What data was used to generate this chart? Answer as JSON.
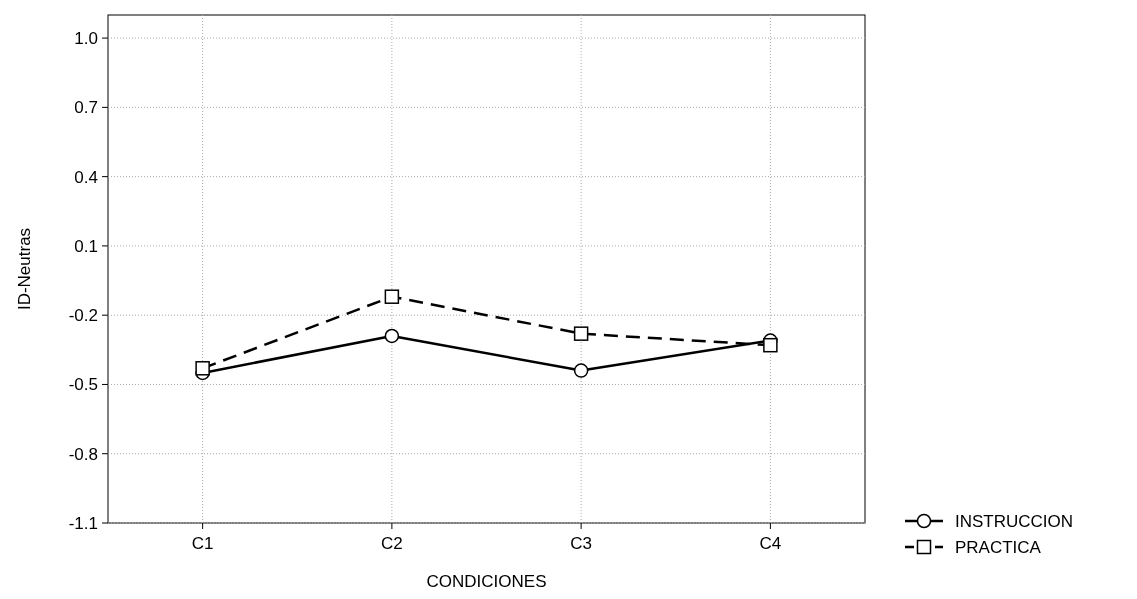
{
  "chart_data": {
    "type": "line",
    "xlabel": "CONDICIONES",
    "ylabel": "ID-Neutras",
    "categories": [
      "C1",
      "C2",
      "C3",
      "C4"
    ],
    "series": [
      {
        "name": "INSTRUCCION",
        "color": "#000000",
        "values": [
          -0.45,
          -0.29,
          -0.44,
          -0.31
        ],
        "marker": "circle",
        "line_style": "solid"
      },
      {
        "name": "PRACTICA",
        "color": "#000000",
        "values": [
          -0.43,
          -0.12,
          -0.28,
          -0.33
        ],
        "marker": "square",
        "line_style": "dashed"
      }
    ],
    "ylim": [
      -1.1,
      1.1
    ],
    "yticks": [
      -1.1,
      -0.8,
      -0.5,
      -0.2,
      0.1,
      0.4,
      0.7,
      {
        "value": 1,
        "label": "1.0"
      }
    ],
    "grid": true,
    "legend": "bottom right"
  }
}
